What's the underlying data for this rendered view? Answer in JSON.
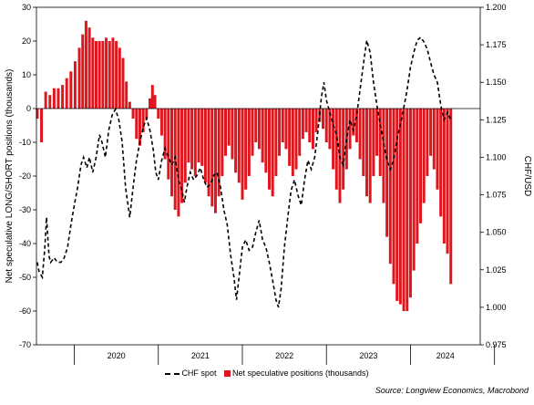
{
  "chart_data": {
    "type": "bar+line",
    "xlabel": "",
    "ylabel_left": "Net speculative LONG/SHORT positions (thousands)",
    "ylabel_right": "CHF/USD",
    "x_tick_labels": [
      "2020",
      "2021",
      "2022",
      "2023",
      "2024"
    ],
    "y_left": {
      "min": -70,
      "max": 30,
      "ticks": [
        "30",
        "20",
        "10",
        "0",
        "-10",
        "-20",
        "-30",
        "-40",
        "-50",
        "-60",
        "-70"
      ]
    },
    "y_right": {
      "min": 0.975,
      "max": 1.2,
      "ticks": [
        "1.200",
        "1.175",
        "1.150",
        "1.125",
        "1.100",
        "1.075",
        "1.050",
        "1.025",
        "1.000",
        "0.975"
      ]
    },
    "x_range": [
      2019.55,
      2024.83
    ],
    "series": [
      {
        "name": "CHF spot",
        "type": "line",
        "axis": "right",
        "color": "#000000",
        "style": "dashed",
        "points": [
          [
            2019.56,
            1.03
          ],
          [
            2019.58,
            1.024
          ],
          [
            2019.62,
            1.02
          ],
          [
            2019.65,
            1.04
          ],
          [
            2019.67,
            1.06
          ],
          [
            2019.7,
            1.034
          ],
          [
            2019.72,
            1.03
          ],
          [
            2019.76,
            1.033
          ],
          [
            2019.8,
            1.03
          ],
          [
            2019.84,
            1.03
          ],
          [
            2019.88,
            1.033
          ],
          [
            2019.92,
            1.04
          ],
          [
            2019.96,
            1.055
          ],
          [
            2020.0,
            1.068
          ],
          [
            2020.04,
            1.08
          ],
          [
            2020.08,
            1.095
          ],
          [
            2020.11,
            1.1
          ],
          [
            2020.15,
            1.093
          ],
          [
            2020.18,
            1.1
          ],
          [
            2020.22,
            1.09
          ],
          [
            2020.26,
            1.1
          ],
          [
            2020.3,
            1.115
          ],
          [
            2020.33,
            1.11
          ],
          [
            2020.37,
            1.1
          ],
          [
            2020.41,
            1.118
          ],
          [
            2020.45,
            1.128
          ],
          [
            2020.49,
            1.132
          ],
          [
            2020.53,
            1.125
          ],
          [
            2020.57,
            1.11
          ],
          [
            2020.61,
            1.08
          ],
          [
            2020.66,
            1.06
          ],
          [
            2020.7,
            1.08
          ],
          [
            2020.74,
            1.098
          ],
          [
            2020.78,
            1.11
          ],
          [
            2020.82,
            1.12
          ],
          [
            2020.86,
            1.126
          ],
          [
            2020.9,
            1.118
          ],
          [
            2020.94,
            1.105
          ],
          [
            2020.97,
            1.09
          ],
          [
            2021.0,
            1.085
          ],
          [
            2021.04,
            1.098
          ],
          [
            2021.08,
            1.106
          ],
          [
            2021.12,
            1.1
          ],
          [
            2021.16,
            1.095
          ],
          [
            2021.2,
            1.1
          ],
          [
            2021.24,
            1.085
          ],
          [
            2021.28,
            1.078
          ],
          [
            2021.31,
            1.07
          ],
          [
            2021.34,
            1.08
          ],
          [
            2021.38,
            1.09
          ],
          [
            2021.42,
            1.085
          ],
          [
            2021.46,
            1.088
          ],
          [
            2021.5,
            1.093
          ],
          [
            2021.54,
            1.085
          ],
          [
            2021.58,
            1.08
          ],
          [
            2021.62,
            1.082
          ],
          [
            2021.66,
            1.088
          ],
          [
            2021.7,
            1.09
          ],
          [
            2021.74,
            1.08
          ],
          [
            2021.78,
            1.065
          ],
          [
            2021.82,
            1.055
          ],
          [
            2021.86,
            1.035
          ],
          [
            2021.9,
            1.02
          ],
          [
            2021.93,
            1.005
          ],
          [
            2021.96,
            1.02
          ],
          [
            2022.0,
            1.04
          ],
          [
            2022.04,
            1.045
          ],
          [
            2022.08,
            1.038
          ],
          [
            2022.12,
            1.04
          ],
          [
            2022.16,
            1.05
          ],
          [
            2022.2,
            1.058
          ],
          [
            2022.24,
            1.045
          ],
          [
            2022.28,
            1.04
          ],
          [
            2022.32,
            1.03
          ],
          [
            2022.36,
            1.018
          ],
          [
            2022.4,
            1.005
          ],
          [
            2022.43,
            1.0
          ],
          [
            2022.46,
            1.012
          ],
          [
            2022.5,
            1.04
          ],
          [
            2022.54,
            1.06
          ],
          [
            2022.58,
            1.078
          ],
          [
            2022.62,
            1.085
          ],
          [
            2022.66,
            1.075
          ],
          [
            2022.7,
            1.068
          ],
          [
            2022.74,
            1.085
          ],
          [
            2022.78,
            1.098
          ],
          [
            2022.82,
            1.092
          ],
          [
            2022.86,
            1.1
          ],
          [
            2022.9,
            1.118
          ],
          [
            2022.94,
            1.14
          ],
          [
            2022.97,
            1.15
          ],
          [
            2023.0,
            1.138
          ],
          [
            2023.04,
            1.13
          ],
          [
            2023.08,
            1.122
          ],
          [
            2023.12,
            1.115
          ],
          [
            2023.16,
            1.1
          ],
          [
            2023.2,
            1.095
          ],
          [
            2023.24,
            1.112
          ],
          [
            2023.28,
            1.125
          ],
          [
            2023.32,
            1.118
          ],
          [
            2023.36,
            1.128
          ],
          [
            2023.4,
            1.145
          ],
          [
            2023.44,
            1.162
          ],
          [
            2023.48,
            1.178
          ],
          [
            2023.52,
            1.17
          ],
          [
            2023.56,
            1.15
          ],
          [
            2023.6,
            1.135
          ],
          [
            2023.64,
            1.122
          ],
          [
            2023.68,
            1.11
          ],
          [
            2023.72,
            1.098
          ],
          [
            2023.76,
            1.092
          ],
          [
            2023.8,
            1.098
          ],
          [
            2023.84,
            1.112
          ],
          [
            2023.88,
            1.122
          ],
          [
            2023.92,
            1.133
          ],
          [
            2023.96,
            1.145
          ],
          [
            2024.0,
            1.16
          ],
          [
            2024.04,
            1.17
          ],
          [
            2024.08,
            1.178
          ],
          [
            2024.12,
            1.18
          ],
          [
            2024.16,
            1.177
          ],
          [
            2024.2,
            1.172
          ],
          [
            2024.24,
            1.163
          ],
          [
            2024.28,
            1.155
          ],
          [
            2024.32,
            1.15
          ],
          [
            2024.36,
            1.135
          ],
          [
            2024.4,
            1.125
          ],
          [
            2024.44,
            1.13
          ],
          [
            2024.48,
            1.125
          ]
        ]
      },
      {
        "name": "Net speculative positions (thousands)",
        "type": "bar",
        "axis": "left",
        "color": "#e0161e",
        "points": [
          [
            2019.56,
            -3
          ],
          [
            2019.61,
            -10
          ],
          [
            2019.66,
            5
          ],
          [
            2019.71,
            4
          ],
          [
            2019.76,
            6
          ],
          [
            2019.81,
            6
          ],
          [
            2019.86,
            7
          ],
          [
            2019.91,
            9
          ],
          [
            2019.96,
            11
          ],
          [
            2020.01,
            14
          ],
          [
            2020.06,
            18
          ],
          [
            2020.1,
            22
          ],
          [
            2020.14,
            26
          ],
          [
            2020.18,
            24
          ],
          [
            2020.22,
            21
          ],
          [
            2020.26,
            20
          ],
          [
            2020.3,
            20
          ],
          [
            2020.34,
            20
          ],
          [
            2020.38,
            21
          ],
          [
            2020.42,
            20
          ],
          [
            2020.46,
            21
          ],
          [
            2020.5,
            20
          ],
          [
            2020.54,
            18
          ],
          [
            2020.58,
            15
          ],
          [
            2020.62,
            8
          ],
          [
            2020.66,
            2
          ],
          [
            2020.7,
            -3
          ],
          [
            2020.74,
            -9
          ],
          [
            2020.78,
            -11
          ],
          [
            2020.82,
            -7
          ],
          [
            2020.86,
            -3
          ],
          [
            2020.9,
            3
          ],
          [
            2020.93,
            7
          ],
          [
            2020.96,
            4
          ],
          [
            2021.0,
            -3
          ],
          [
            2021.04,
            -8
          ],
          [
            2021.08,
            -15
          ],
          [
            2021.12,
            -21
          ],
          [
            2021.16,
            -26
          ],
          [
            2021.2,
            -30
          ],
          [
            2021.24,
            -32
          ],
          [
            2021.28,
            -28
          ],
          [
            2021.32,
            -22
          ],
          [
            2021.36,
            -16
          ],
          [
            2021.4,
            -18
          ],
          [
            2021.44,
            -20
          ],
          [
            2021.48,
            -16
          ],
          [
            2021.52,
            -17
          ],
          [
            2021.56,
            -22
          ],
          [
            2021.6,
            -26
          ],
          [
            2021.64,
            -29
          ],
          [
            2021.68,
            -31
          ],
          [
            2021.72,
            -26
          ],
          [
            2021.76,
            -20
          ],
          [
            2021.8,
            -14
          ],
          [
            2021.84,
            -11
          ],
          [
            2021.88,
            -15
          ],
          [
            2021.92,
            -19
          ],
          [
            2021.96,
            -22
          ],
          [
            2022.0,
            -27
          ],
          [
            2022.04,
            -24
          ],
          [
            2022.08,
            -20
          ],
          [
            2022.12,
            -14
          ],
          [
            2022.16,
            -10
          ],
          [
            2022.2,
            -12
          ],
          [
            2022.24,
            -16
          ],
          [
            2022.28,
            -19
          ],
          [
            2022.32,
            -24
          ],
          [
            2022.36,
            -26
          ],
          [
            2022.4,
            -20
          ],
          [
            2022.44,
            -14
          ],
          [
            2022.48,
            -10
          ],
          [
            2022.52,
            -12
          ],
          [
            2022.56,
            -17
          ],
          [
            2022.6,
            -20
          ],
          [
            2022.64,
            -18
          ],
          [
            2022.68,
            -14
          ],
          [
            2022.72,
            -9
          ],
          [
            2022.76,
            -7
          ],
          [
            2022.8,
            -10
          ],
          [
            2022.84,
            -12
          ],
          [
            2022.88,
            -7
          ],
          [
            2022.92,
            -4
          ],
          [
            2022.96,
            -6
          ],
          [
            2023.0,
            -10
          ],
          [
            2023.04,
            -12
          ],
          [
            2023.08,
            -18
          ],
          [
            2023.12,
            -24
          ],
          [
            2023.16,
            -28
          ],
          [
            2023.2,
            -24
          ],
          [
            2023.24,
            -18
          ],
          [
            2023.28,
            -12
          ],
          [
            2023.32,
            -8
          ],
          [
            2023.36,
            -10
          ],
          [
            2023.4,
            -15
          ],
          [
            2023.44,
            -20
          ],
          [
            2023.48,
            -26
          ],
          [
            2023.52,
            -28
          ],
          [
            2023.56,
            -20
          ],
          [
            2023.6,
            -14
          ],
          [
            2023.64,
            -20
          ],
          [
            2023.68,
            -28
          ],
          [
            2023.72,
            -38
          ],
          [
            2023.76,
            -46
          ],
          [
            2023.8,
            -52
          ],
          [
            2023.84,
            -57
          ],
          [
            2023.88,
            -58
          ],
          [
            2023.92,
            -60
          ],
          [
            2023.96,
            -60
          ],
          [
            2024.0,
            -56
          ],
          [
            2024.04,
            -48
          ],
          [
            2024.08,
            -40
          ],
          [
            2024.12,
            -34
          ],
          [
            2024.16,
            -28
          ],
          [
            2024.2,
            -20
          ],
          [
            2024.24,
            -14
          ],
          [
            2024.28,
            -18
          ],
          [
            2024.32,
            -24
          ],
          [
            2024.36,
            -32
          ],
          [
            2024.4,
            -40
          ],
          [
            2024.44,
            -43
          ],
          [
            2024.48,
            -52
          ]
        ]
      }
    ],
    "grid": false,
    "legend_position": "bottom-center",
    "source": "Source: Longview Economics, Macrobond"
  },
  "legend": {
    "line_label": "CHF spot",
    "bar_label": "Net speculative positions (thousands)"
  },
  "source_text": "Source: Longview Economics, Macrobond"
}
